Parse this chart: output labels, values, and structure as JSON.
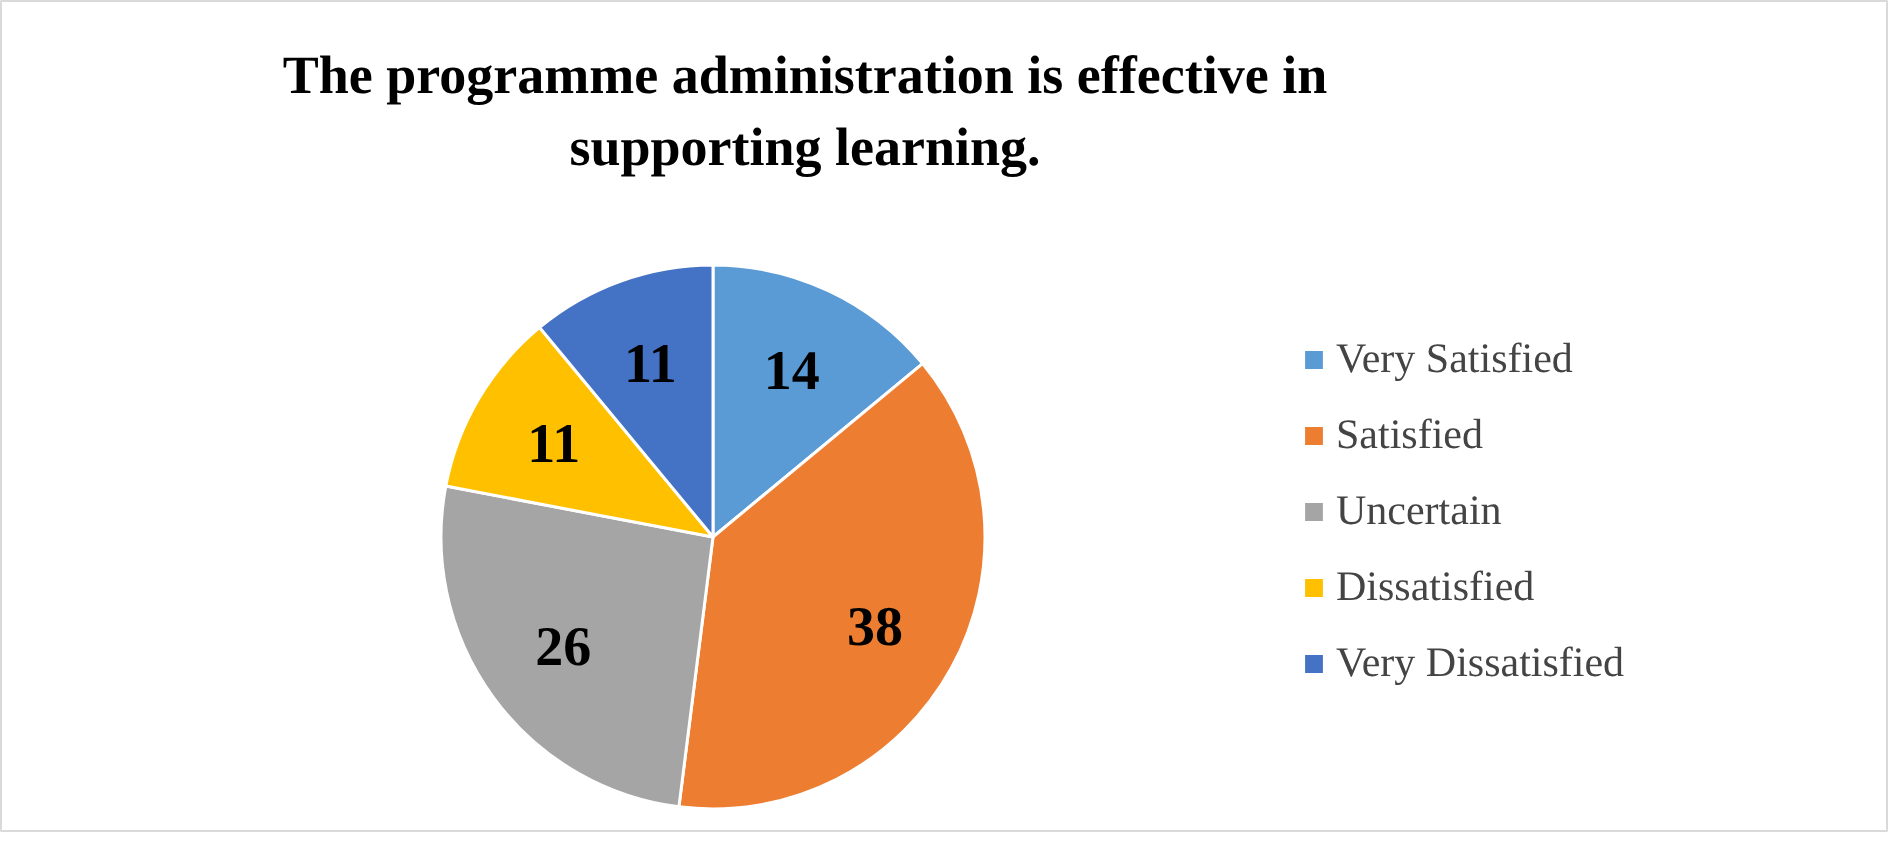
{
  "chart_data": {
    "type": "pie",
    "title": "The programme administration is effective in supporting learning.",
    "categories": [
      "Very Satisfied",
      "Satisfied",
      "Uncertain",
      "Dissatisfied",
      "Very Dissatisfied"
    ],
    "values": [
      14,
      38,
      26,
      11,
      11
    ],
    "colors": [
      "#5b9bd5",
      "#ed7d31",
      "#a5a5a5",
      "#ffc000",
      "#4472c4"
    ],
    "data_labels": true,
    "legend": "right"
  }
}
